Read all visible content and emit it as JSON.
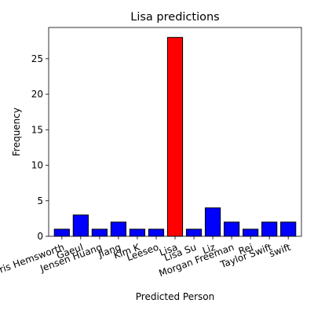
{
  "chart_data": {
    "type": "bar",
    "title": "Lisa predictions",
    "xlabel": "Predicted Person",
    "ylabel": "Frequency",
    "categories": [
      "Chris Hemsworth",
      "Gaeul",
      "Jensen Huang",
      "Jiang",
      "Kim K",
      "Leeseo",
      "Lisa",
      "Lisa Su",
      "Liz",
      "Morgan Freeman",
      "Rei",
      "Taylor Swift",
      "swift"
    ],
    "values": [
      1,
      3,
      1,
      2,
      1,
      1,
      28,
      1,
      4,
      2,
      1,
      2,
      2
    ],
    "bar_colors": [
      "#0000ff",
      "#0000ff",
      "#0000ff",
      "#0000ff",
      "#0000ff",
      "#0000ff",
      "#ff0000",
      "#0000ff",
      "#0000ff",
      "#0000ff",
      "#0000ff",
      "#0000ff",
      "#0000ff"
    ],
    "edge_color": "#000000",
    "ylim": [
      0,
      29.4
    ],
    "yticks": [
      0,
      5,
      10,
      15,
      20,
      25
    ],
    "grid": false,
    "legend": "none"
  }
}
